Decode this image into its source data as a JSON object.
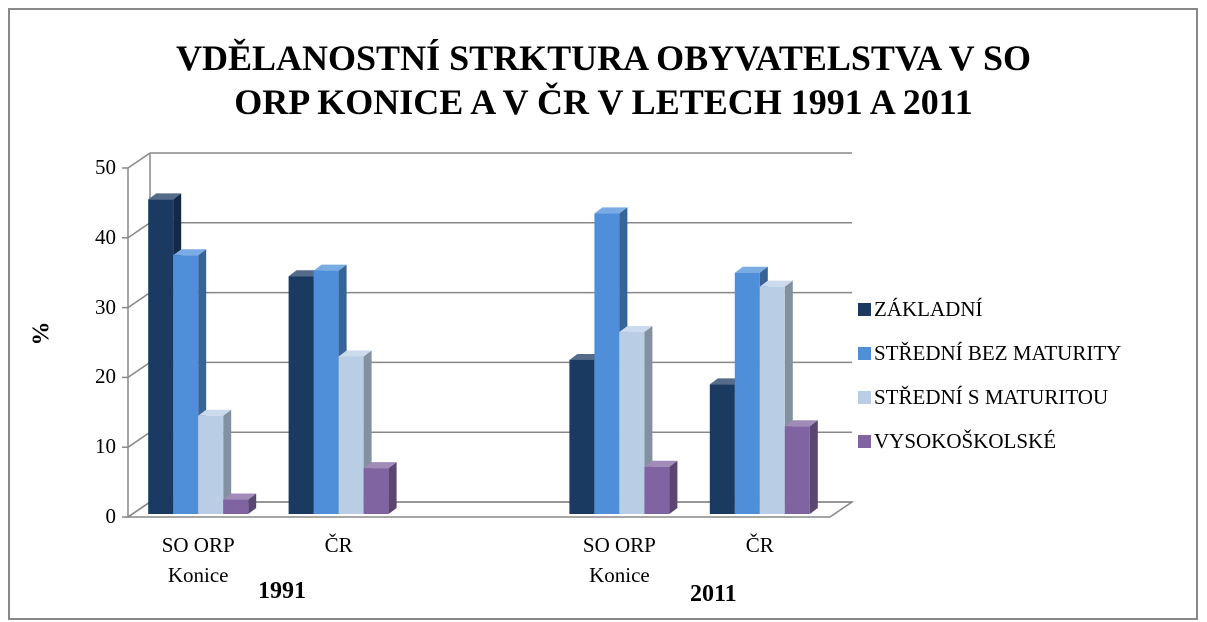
{
  "chart_data": {
    "type": "bar3d",
    "title": "VDĚLANOSTNÍ STRKTURA OBYVATELSTVA V SO\nORP  KONICE A V ČR V LETECH 1991 A 2011",
    "y_label": "%",
    "categories": [
      "SO ORP\nKonice",
      "ČR",
      null,
      "SO ORP\nKonice",
      "ČR"
    ],
    "group_labels": [
      "1991",
      "2011"
    ],
    "series": [
      {
        "name": "ZÁKLADNÍ",
        "color": "#1b3a62",
        "values": [
          45.5,
          34.5,
          null,
          22.5,
          19
        ]
      },
      {
        "name": "STŘEDNÍ BEZ MATURITY",
        "color": "#4f8fd9",
        "values": [
          37.5,
          35.3,
          null,
          43.5,
          35
        ]
      },
      {
        "name": "STŘEDNÍ S MATURITOU",
        "color": "#b9cde5",
        "values": [
          14.5,
          23,
          null,
          26.5,
          33
        ]
      },
      {
        "name": "VYSOKOŠKOLSKÉ",
        "color": "#8064a2",
        "values": [
          2.5,
          7,
          null,
          7.2,
          13
        ]
      }
    ],
    "ylim": [
      0,
      50
    ],
    "yticks": [
      0,
      10,
      20,
      30,
      40,
      50
    ],
    "grid": true,
    "legend": "right"
  }
}
